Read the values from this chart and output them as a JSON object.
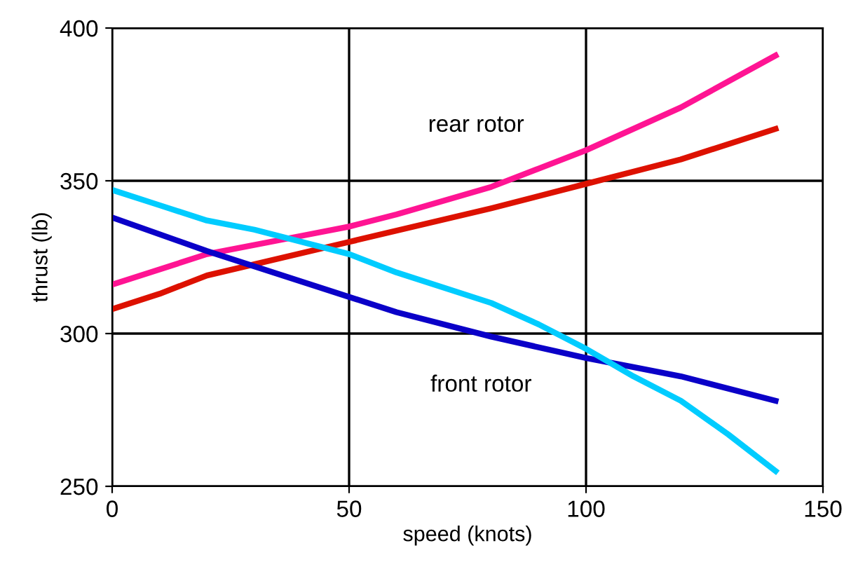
{
  "chart_data": {
    "type": "line",
    "xlabel": "speed (knots)",
    "ylabel": "thrust (lb)",
    "xlim": [
      0,
      150
    ],
    "xticks": [
      0,
      50,
      100,
      150
    ],
    "ylim": [
      250,
      400
    ],
    "yticks": [
      250,
      300,
      350,
      400
    ],
    "grid": true,
    "marker": "none",
    "line_style": "solid",
    "series": [
      {
        "color": "#ff1493",
        "x": [
          0,
          20,
          40,
          50,
          60,
          80,
          90,
          100,
          120,
          140
        ],
        "values": [
          316,
          326,
          332,
          335,
          339,
          348,
          354,
          360,
          374,
          391
        ]
      },
      {
        "color": "#dd1100",
        "x": [
          0,
          10,
          20,
          50,
          80,
          100,
          120,
          140
        ],
        "values": [
          308,
          313,
          319,
          330,
          341,
          349,
          357,
          367
        ]
      },
      {
        "color": "#0a00c8",
        "x": [
          0,
          20,
          50,
          60,
          80,
          100,
          110,
          120,
          140
        ],
        "values": [
          338,
          327,
          312,
          307,
          299,
          292,
          289,
          286,
          278
        ]
      },
      {
        "color": "#00ccff",
        "x": [
          0,
          10,
          20,
          30,
          50,
          60,
          80,
          90,
          100,
          110,
          120,
          130,
          140
        ],
        "values": [
          347,
          342,
          337,
          334,
          326,
          320,
          310,
          303,
          295,
          286,
          278,
          267,
          255
        ]
      }
    ],
    "annotations": [
      "rear rotor",
      "front rotor"
    ]
  }
}
